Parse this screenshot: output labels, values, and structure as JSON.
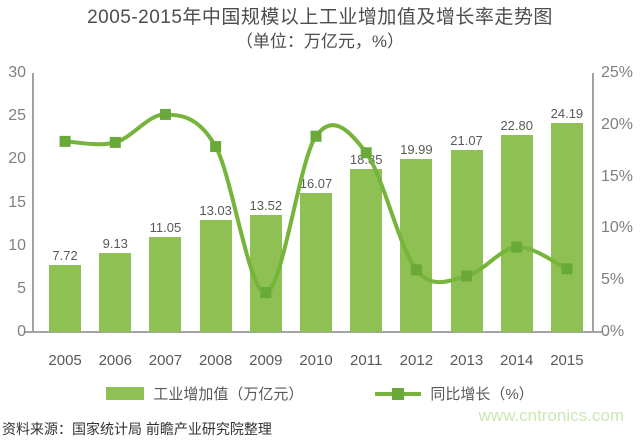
{
  "title": {
    "line1": "2005-2015年中国规模以上工业增加值及增长率走势图",
    "line2": "（单位：万亿元，%）"
  },
  "chart_data": {
    "type": "combo",
    "title": "2005-2015年中国规模以上工业增加值及增长率走势图",
    "subtitle": "（单位：万亿元，%）",
    "categories": [
      "2005",
      "2006",
      "2007",
      "2008",
      "2009",
      "2010",
      "2011",
      "2012",
      "2013",
      "2014",
      "2015"
    ],
    "series": [
      {
        "name": "工业增加值（万亿元）",
        "type": "bar",
        "axis": "left",
        "values": [
          7.72,
          9.13,
          11.05,
          13.03,
          13.52,
          16.07,
          18.85,
          19.99,
          21.07,
          22.8,
          24.19
        ],
        "labels": [
          "7.72",
          "9.13",
          "11.05",
          "13.03",
          "13.52",
          "16.07",
          "18.85",
          "19.99",
          "21.07",
          "22.80",
          "24.19"
        ]
      },
      {
        "name": "同比增长（%）",
        "type": "line",
        "axis": "right",
        "values": [
          18.4,
          18.3,
          21.0,
          17.9,
          3.8,
          18.9,
          17.3,
          6.0,
          5.4,
          8.2,
          6.1
        ]
      }
    ],
    "left_axis": {
      "min": 0,
      "max": 30,
      "ticks_top_to_bottom": [
        "30",
        "25",
        "20",
        "15",
        "10",
        "5",
        "0"
      ]
    },
    "right_axis": {
      "min": 0,
      "max": 25,
      "ticks_top_to_bottom": [
        "25%",
        "20%",
        "15%",
        "10%",
        "5%",
        "0%"
      ]
    },
    "grid": false,
    "legend_position": "bottom"
  },
  "legend": {
    "bar_label": "工业增加值（万亿元）",
    "line_label": "同比增长（%）"
  },
  "footer": {
    "source": "资料来源：国家统计局 前瞻产业研究院整理",
    "watermark": "www.cntronics.com"
  },
  "colors": {
    "bar": "#8ec054",
    "line": "#76b43c",
    "marker": "#69a939",
    "axis": "#a3a3a3",
    "tick_label": "#808080",
    "data_label": "#595959",
    "title": "#4d4d4d",
    "watermark": "#cde7b2"
  }
}
